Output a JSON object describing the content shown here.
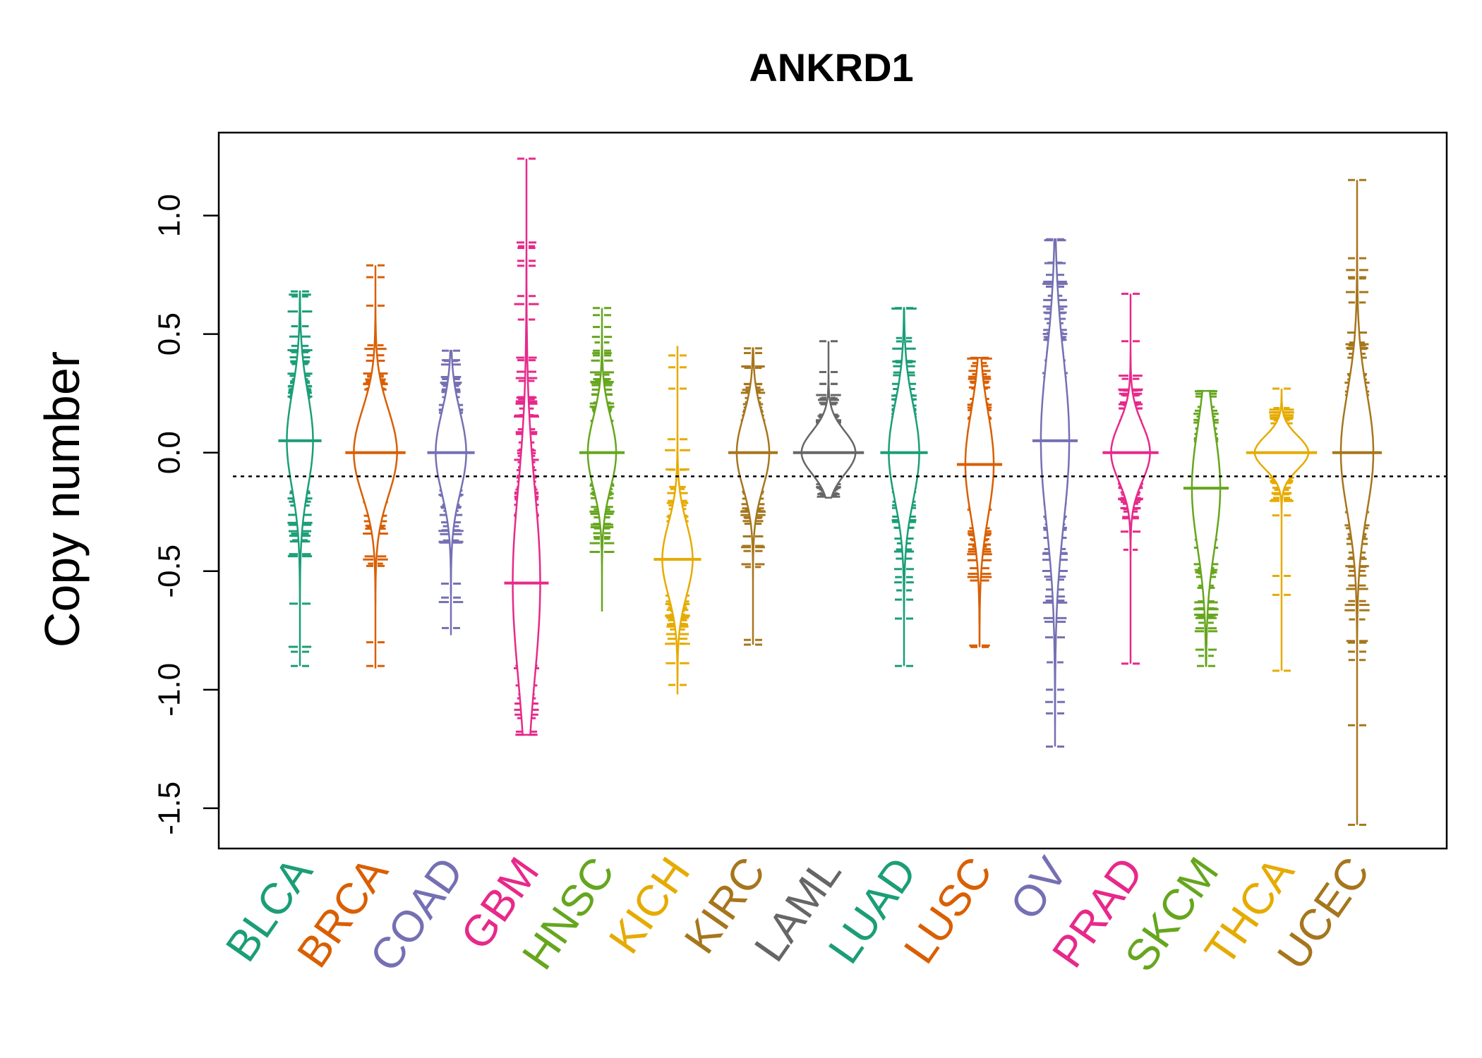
{
  "chart_data": {
    "type": "beanplot",
    "title": "ANKRD1",
    "ylabel": "Copy number",
    "xlabel": "",
    "ylim": [
      -1.67,
      1.35
    ],
    "yticks": [
      -1.5,
      -1.0,
      -0.5,
      0.0,
      0.5,
      1.0
    ],
    "ytick_labels": [
      "-1.5",
      "-1.0",
      "-0.5",
      "0.0",
      "0.5",
      "1.0"
    ],
    "reference_line": -0.1,
    "grid": false,
    "categories": [
      {
        "name": "BLCA",
        "color": "#1B9E77",
        "min": -0.9,
        "max": 0.68,
        "mode": 0.05,
        "spread": 0.2,
        "width": 0.25,
        "outliers": [
          0.68,
          -0.84,
          -0.9
        ]
      },
      {
        "name": "BRCA",
        "color": "#D95F02",
        "min": -0.91,
        "max": 0.79,
        "mode": 0.0,
        "spread": 0.18,
        "width": 0.65,
        "outliers": [
          0.79,
          0.74,
          0.62,
          -0.8,
          -0.9
        ]
      },
      {
        "name": "COAD",
        "color": "#7570B3",
        "min": -0.77,
        "max": 0.43,
        "mode": 0.0,
        "spread": 0.17,
        "width": 0.35,
        "outliers": [
          0.43,
          0.39,
          -0.74
        ]
      },
      {
        "name": "GBM",
        "color": "#E7298A",
        "min": -1.19,
        "max": 1.24,
        "mode": -0.55,
        "spread": 0.4,
        "width": 0.28,
        "outliers": [
          1.24,
          0.39,
          -1.12,
          -1.19
        ]
      },
      {
        "name": "HNSC",
        "color": "#66A61E",
        "min": -0.67,
        "max": 0.61,
        "mode": 0.0,
        "spread": 0.15,
        "width": 0.3,
        "outliers": [
          0.61,
          0.58,
          0.53,
          0.43,
          0.41
        ]
      },
      {
        "name": "KICH",
        "color": "#E6AB02",
        "min": -1.02,
        "max": 0.45,
        "mode": -0.45,
        "spread": 0.15,
        "width": 0.35,
        "outliers": [
          0.41,
          0.36,
          0.27,
          -0.98
        ]
      },
      {
        "name": "KIRC",
        "color": "#A6761D",
        "min": -0.81,
        "max": 0.44,
        "mode": 0.0,
        "spread": 0.15,
        "width": 0.4,
        "outliers": [
          0.44,
          0.42,
          -0.79,
          -0.81
        ]
      },
      {
        "name": "LAML",
        "color": "#666666",
        "min": -0.19,
        "max": 0.47,
        "mode": 0.0,
        "spread": 0.09,
        "width": 0.9,
        "outliers": [
          0.47,
          0.34,
          0.29
        ]
      },
      {
        "name": "LUAD",
        "color": "#1B9E77",
        "min": -0.9,
        "max": 0.61,
        "mode": 0.0,
        "spread": 0.2,
        "width": 0.35,
        "outliers": [
          0.61,
          -0.62,
          -0.7,
          -0.9
        ]
      },
      {
        "name": "LUSC",
        "color": "#D95F02",
        "min": -0.82,
        "max": 0.4,
        "mode": -0.05,
        "spread": 0.22,
        "width": 0.3,
        "outliers": [
          0.4,
          -0.82
        ]
      },
      {
        "name": "OV",
        "color": "#7570B3",
        "min": -1.24,
        "max": 0.9,
        "mode": 0.05,
        "spread": 0.35,
        "width": 0.3,
        "outliers": [
          0.9,
          0.75,
          0.7,
          -1.0,
          -1.1,
          -1.24
        ]
      },
      {
        "name": "PRAD",
        "color": "#E7298A",
        "min": -0.89,
        "max": 0.67,
        "mode": 0.0,
        "spread": 0.12,
        "width": 0.55,
        "outliers": [
          0.67,
          0.47,
          -0.89
        ]
      },
      {
        "name": "SKCM",
        "color": "#66A61E",
        "min": -0.9,
        "max": 0.26,
        "mode": -0.15,
        "spread": 0.25,
        "width": 0.3,
        "outliers": [
          0.26,
          -0.9
        ]
      },
      {
        "name": "THCA",
        "color": "#E6AB02",
        "min": -0.92,
        "max": 0.27,
        "mode": 0.0,
        "spread": 0.07,
        "width": 0.9,
        "outliers": [
          0.27,
          -0.52,
          -0.6,
          -0.92
        ]
      },
      {
        "name": "UCEC",
        "color": "#A6761D",
        "min": -1.57,
        "max": 1.15,
        "mode": 0.0,
        "spread": 0.25,
        "width": 0.4,
        "outliers": [
          1.15,
          0.82,
          0.74,
          -1.15,
          -1.57
        ]
      }
    ]
  }
}
